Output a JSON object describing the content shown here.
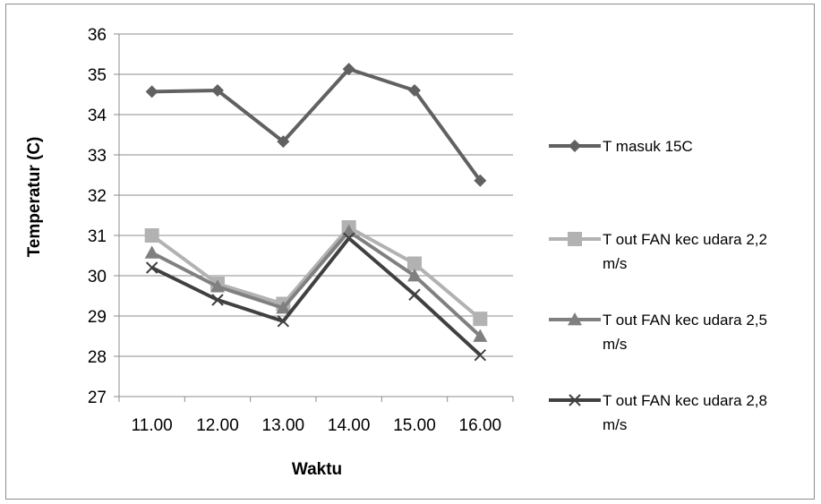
{
  "chart_data": {
    "type": "line",
    "categories": [
      "11.00",
      "12.00",
      "13.00",
      "14.00",
      "15.00",
      "16.00"
    ],
    "xlabel": "Waktu",
    "ylabel": "Temperatur (C)",
    "ylim": [
      27,
      36
    ],
    "yticks": [
      "27",
      "28",
      "29",
      "30",
      "31",
      "32",
      "33",
      "34",
      "35",
      "36"
    ],
    "grid": true,
    "legend_position": "right",
    "series": [
      {
        "name": "T masuk 15C",
        "legend_lines": [
          "T masuk 15C"
        ],
        "values": [
          34.57,
          34.6,
          33.33,
          35.13,
          34.6,
          32.36
        ],
        "color": "#616161",
        "marker": "diamond"
      },
      {
        "name": "T out FAN kec udara 2,2 m/s",
        "legend_lines": [
          "T out FAN kec udara 2,2",
          "m/s"
        ],
        "values": [
          31.0,
          29.8,
          29.3,
          31.2,
          30.3,
          28.93
        ],
        "color": "#b2b2b2",
        "marker": "square"
      },
      {
        "name": "T out FAN kec udara 2,5 m/s",
        "legend_lines": [
          "T out FAN kec udara 2,5",
          "m/s"
        ],
        "values": [
          30.57,
          29.73,
          29.2,
          31.1,
          30.0,
          28.5
        ],
        "color": "#808080",
        "marker": "triangle"
      },
      {
        "name": "T out FAN kec udara 2,8 m/s",
        "legend_lines": [
          "T out FAN kec udara 2,8",
          "m/s"
        ],
        "values": [
          30.2,
          29.4,
          28.87,
          30.93,
          29.53,
          28.03
        ],
        "color": "#404040",
        "marker": "x"
      }
    ]
  }
}
